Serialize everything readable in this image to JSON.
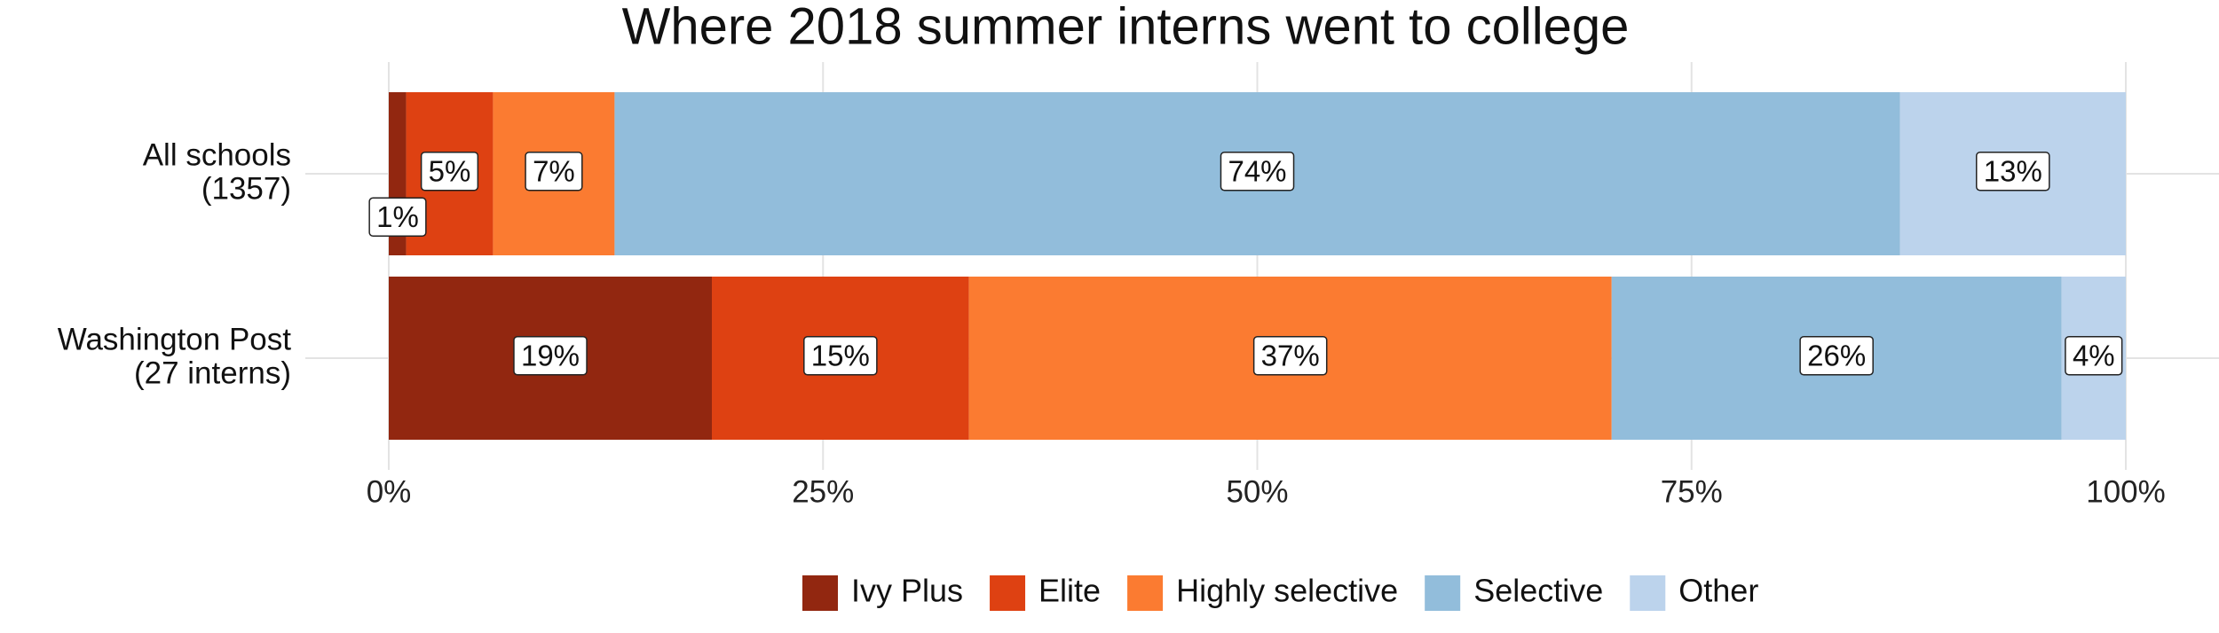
{
  "chart_data": {
    "type": "stacked-bar-horizontal",
    "title": "Where 2018 summer interns went to college",
    "categories": [
      [
        "All schools",
        "(1357)"
      ],
      [
        "Washington Post",
        "(27 interns)"
      ]
    ],
    "series": [
      {
        "name": "Ivy Plus",
        "color": "#922710",
        "values": [
          1,
          18.6
        ],
        "value_labels": [
          "1%",
          "19%"
        ]
      },
      {
        "name": "Elite",
        "color": "#de4112",
        "values": [
          5,
          14.8
        ],
        "value_labels": [
          "5%",
          "15%"
        ]
      },
      {
        "name": "Highly selective",
        "color": "#fb7b31",
        "values": [
          7,
          37.0
        ],
        "value_labels": [
          "7%",
          "37%"
        ]
      },
      {
        "name": "Selective",
        "color": "#92bddb",
        "values": [
          74,
          25.9
        ],
        "value_labels": [
          "74%",
          "26%"
        ]
      },
      {
        "name": "Other",
        "color": "#bcd3ec",
        "values": [
          13,
          3.7
        ],
        "value_labels": [
          "13%",
          "4%"
        ]
      }
    ],
    "xlim": [
      0,
      100
    ],
    "xticks": [
      {
        "value": 0,
        "label": "0%"
      },
      {
        "value": 25,
        "label": "25%"
      },
      {
        "value": 50,
        "label": "50%"
      },
      {
        "value": 75,
        "label": "75%"
      },
      {
        "value": 100,
        "label": "100%"
      }
    ],
    "grid": true,
    "legend": "bottom"
  }
}
